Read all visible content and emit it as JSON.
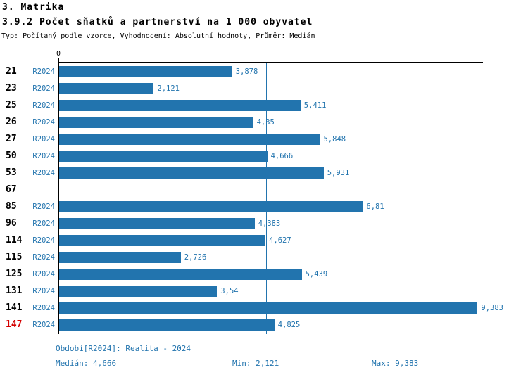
{
  "header": {
    "title1": "3. Matrika",
    "title2": "3.9.2 Počet sňatků a partnerství na 1 000 obyvatel",
    "subtitle": "Typ: Počítaný podle vzorce, Vyhodnocení: Absolutní hodnoty, Průměr: Medián"
  },
  "chart_data": {
    "type": "bar",
    "orientation": "horizontal",
    "axis_zero_label": "0",
    "xlim": [
      0,
      9.52
    ],
    "median_value": 4.666,
    "series_name": "R2024",
    "categories": [
      "21",
      "23",
      "25",
      "26",
      "27",
      "50",
      "53",
      "67",
      "85",
      "96",
      "114",
      "115",
      "125",
      "131",
      "141",
      "147"
    ],
    "values": [
      3.878,
      2.121,
      5.411,
      4.35,
      5.848,
      4.666,
      5.931,
      null,
      6.81,
      4.383,
      4.627,
      2.726,
      5.439,
      3.54,
      9.383,
      4.825
    ],
    "rows": [
      {
        "category": "21",
        "series": "R2024",
        "value": 3.878,
        "value_label": "3,878",
        "highlight": false
      },
      {
        "category": "23",
        "series": "R2024",
        "value": 2.121,
        "value_label": "2,121",
        "highlight": false
      },
      {
        "category": "25",
        "series": "R2024",
        "value": 5.411,
        "value_label": "5,411",
        "highlight": false
      },
      {
        "category": "26",
        "series": "R2024",
        "value": 4.35,
        "value_label": "4,35",
        "highlight": false
      },
      {
        "category": "27",
        "series": "R2024",
        "value": 5.848,
        "value_label": "5,848",
        "highlight": false
      },
      {
        "category": "50",
        "series": "R2024",
        "value": 4.666,
        "value_label": "4,666",
        "highlight": false
      },
      {
        "category": "53",
        "series": "R2024",
        "value": 5.931,
        "value_label": "5,931",
        "highlight": false
      },
      {
        "category": "67",
        "series": "",
        "value": null,
        "value_label": "",
        "highlight": false
      },
      {
        "category": "85",
        "series": "R2024",
        "value": 6.81,
        "value_label": "6,81",
        "highlight": false
      },
      {
        "category": "96",
        "series": "R2024",
        "value": 4.383,
        "value_label": "4,383",
        "highlight": false
      },
      {
        "category": "114",
        "series": "R2024",
        "value": 4.627,
        "value_label": "4,627",
        "highlight": false
      },
      {
        "category": "115",
        "series": "R2024",
        "value": 2.726,
        "value_label": "2,726",
        "highlight": false
      },
      {
        "category": "125",
        "series": "R2024",
        "value": 5.439,
        "value_label": "5,439",
        "highlight": false
      },
      {
        "category": "131",
        "series": "R2024",
        "value": 3.54,
        "value_label": "3,54",
        "highlight": false
      },
      {
        "category": "141",
        "series": "R2024",
        "value": 9.383,
        "value_label": "9,383",
        "highlight": false
      },
      {
        "category": "147",
        "series": "R2024",
        "value": 4.825,
        "value_label": "4,825",
        "highlight": true
      }
    ],
    "colors": {
      "bar": "#2274ae",
      "highlight_category": "#d40000",
      "axis": "#000000"
    }
  },
  "footer": {
    "period": "Období[R2024]: Realita - 2024",
    "median": "Medián: 4,666",
    "min": "Min: 2,121",
    "max": "Max: 9,383"
  }
}
